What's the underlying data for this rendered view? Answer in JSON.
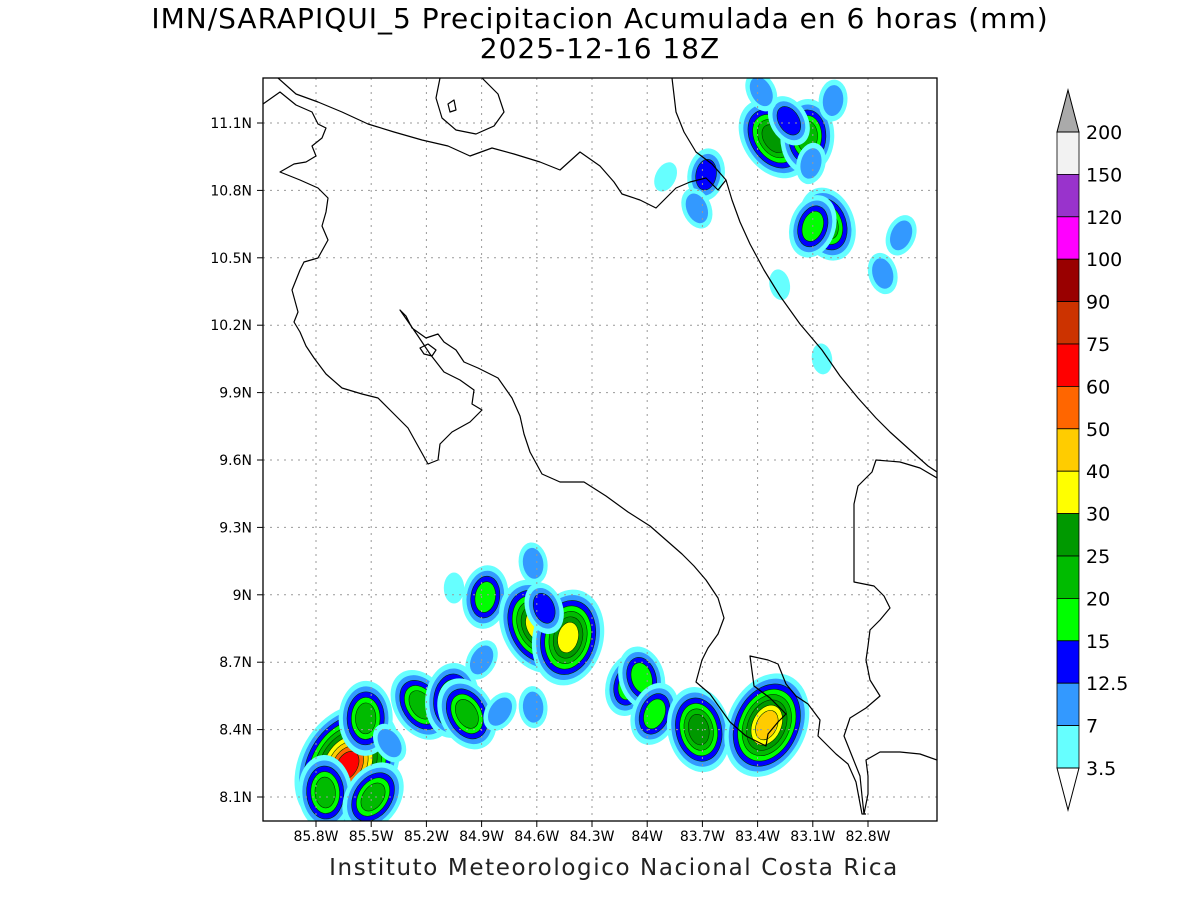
{
  "title": {
    "line1": "IMN/SARAPIQUI_5 Precipitacion Acumulada en 6 horas (mm)",
    "line2": "2025-12-16 18Z"
  },
  "footer": "Instituto Meteorologico Nacional Costa Rica",
  "map": {
    "lat_labels": [
      "11.1N",
      "10.8N",
      "10.5N",
      "10.2N",
      "9.9N",
      "9.6N",
      "9.3N",
      "9N",
      "8.7N",
      "8.4N",
      "8.1N"
    ],
    "lon_labels": [
      "85.8W",
      "85.5W",
      "85.2W",
      "84.9W",
      "84.6W",
      "84.3W",
      "84W",
      "83.7W",
      "83.4W",
      "83.1W",
      "82.8W"
    ],
    "lat_values": [
      11.1,
      10.8,
      10.5,
      10.2,
      9.9,
      9.6,
      9.3,
      9.0,
      8.7,
      8.4,
      8.1
    ],
    "lon_values": [
      -85.8,
      -85.5,
      -85.2,
      -84.9,
      -84.6,
      -84.3,
      -84.0,
      -83.7,
      -83.4,
      -83.1,
      -82.8
    ],
    "grid": true
  },
  "colorbar": {
    "levels": [
      "200",
      "150",
      "120",
      "100",
      "90",
      "75",
      "60",
      "50",
      "40",
      "30",
      "25",
      "20",
      "15",
      "12.5",
      "7",
      "3.5"
    ],
    "colors": [
      "#f2f2f2",
      "#9933cc",
      "#ff00ff",
      "#990000",
      "#cc3300",
      "#ff0000",
      "#ff6600",
      "#ffcc00",
      "#ffff00",
      "#009900",
      "#00bb00",
      "#00ff00",
      "#0000ff",
      "#3399ff",
      "#66ffff"
    ],
    "top_arrow_color": "#aaaaaa"
  },
  "precip_cells": [
    {
      "lon": -83.31,
      "lat": 11.03,
      "mm": 25
    },
    {
      "lon": -83.13,
      "lat": 11.04,
      "mm": 20
    },
    {
      "lon": -83.23,
      "lat": 11.11,
      "mm": 12.5
    },
    {
      "lon": -82.99,
      "lat": 11.2,
      "mm": 7
    },
    {
      "lon": -83.38,
      "lat": 11.24,
      "mm": 7
    },
    {
      "lon": -83.68,
      "lat": 10.87,
      "mm": 12.5
    },
    {
      "lon": -83.73,
      "lat": 10.72,
      "mm": 7
    },
    {
      "lon": -83.11,
      "lat": 10.92,
      "mm": 7
    },
    {
      "lon": -83.02,
      "lat": 10.65,
      "mm": 20
    },
    {
      "lon": -83.1,
      "lat": 10.64,
      "mm": 15
    },
    {
      "lon": -82.72,
      "lat": 10.43,
      "mm": 7
    },
    {
      "lon": -82.62,
      "lat": 10.6,
      "mm": 7
    },
    {
      "lon": -83.28,
      "lat": 10.38,
      "mm": 3.5
    },
    {
      "lon": -83.9,
      "lat": 10.86,
      "mm": 3.5
    },
    {
      "lon": -83.05,
      "lat": 10.05,
      "mm": 3.5
    },
    {
      "lon": -85.63,
      "lat": 8.24,
      "mm": 60
    },
    {
      "lon": -85.75,
      "lat": 8.12,
      "mm": 20
    },
    {
      "lon": -85.49,
      "lat": 8.1,
      "mm": 20
    },
    {
      "lon": -85.53,
      "lat": 8.45,
      "mm": 20
    },
    {
      "lon": -85.23,
      "lat": 8.51,
      "mm": 20
    },
    {
      "lon": -85.06,
      "lat": 8.53,
      "mm": 20
    },
    {
      "lon": -84.98,
      "lat": 8.47,
      "mm": 20
    },
    {
      "lon": -84.88,
      "lat": 8.99,
      "mm": 15
    },
    {
      "lon": -84.6,
      "lat": 8.86,
      "mm": 30
    },
    {
      "lon": -84.43,
      "lat": 8.81,
      "mm": 30
    },
    {
      "lon": -84.56,
      "lat": 8.94,
      "mm": 12.5
    },
    {
      "lon": -84.1,
      "lat": 8.6,
      "mm": 15
    },
    {
      "lon": -84.03,
      "lat": 8.63,
      "mm": 15
    },
    {
      "lon": -83.96,
      "lat": 8.47,
      "mm": 15
    },
    {
      "lon": -83.72,
      "lat": 8.4,
      "mm": 25
    },
    {
      "lon": -83.35,
      "lat": 8.42,
      "mm": 40
    },
    {
      "lon": -84.62,
      "lat": 9.14,
      "mm": 7
    },
    {
      "lon": -84.9,
      "lat": 8.71,
      "mm": 7
    },
    {
      "lon": -84.62,
      "lat": 8.5,
      "mm": 7
    },
    {
      "lon": -84.8,
      "lat": 8.48,
      "mm": 7
    },
    {
      "lon": -85.05,
      "lat": 9.03,
      "mm": 3.5
    },
    {
      "lon": -85.4,
      "lat": 8.34,
      "mm": 7
    }
  ]
}
